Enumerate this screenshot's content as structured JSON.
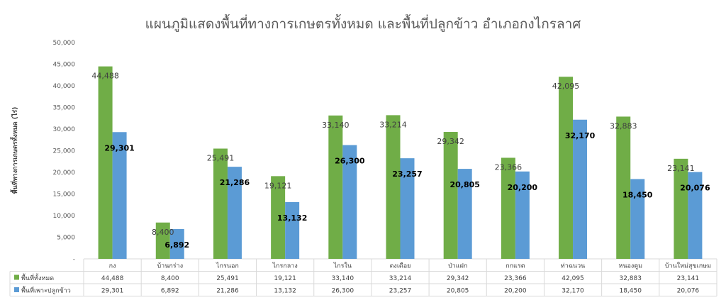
{
  "chart_data": {
    "type": "bar",
    "title": "แผนภูมิแสดงพื้นที่ทางการเกษตรทั้งหมด และพื้นที่ปลูกข้าว อำเภอกงไกรลาศ",
    "ylabel": "พื้นที่ทางการเกษตรทั้งหมด (ไร่)",
    "xlabel": "",
    "ylim": [
      0,
      50000
    ],
    "yticks": [
      "-",
      "5,000",
      "10,000",
      "15,000",
      "20,000",
      "25,000",
      "30,000",
      "35,000",
      "40,000",
      "45,000",
      "50,000"
    ],
    "grid": false,
    "legend": "data-table-bottom",
    "categories": [
      "กง",
      "บ้านกร่าง",
      "ไกรนอก",
      "ไกรกลาง",
      "ไกรใน",
      "ดงเดือย",
      "ป่าแฝก",
      "กกแรต",
      "ท่าฉนวน",
      "หนองตูม",
      "บ้านใหม่สุขเกษม"
    ],
    "series": [
      {
        "name": "พื้นที่ทั้งหมด",
        "color": "#70AD47",
        "values": [
          44488,
          8400,
          25491,
          19121,
          33140,
          33214,
          29342,
          23366,
          42095,
          32883,
          23141
        ],
        "labels": [
          "44,488",
          "8,400",
          "25,491",
          "19,121",
          "33,140",
          "33,214",
          "29,342",
          "23,366",
          "42,095",
          "32,883",
          "23,141"
        ]
      },
      {
        "name": "พื้นที่เพาะปลูกข้าว",
        "color": "#5B9BD5",
        "values": [
          29301,
          6892,
          21286,
          13132,
          26300,
          23257,
          20805,
          20200,
          32170,
          18450,
          20076
        ],
        "labels": [
          "29,301",
          "6,892",
          "21,286",
          "13,132",
          "26,300",
          "23,257",
          "20,805",
          "20,200",
          "32,170",
          "18,450",
          "20,076"
        ]
      }
    ]
  }
}
